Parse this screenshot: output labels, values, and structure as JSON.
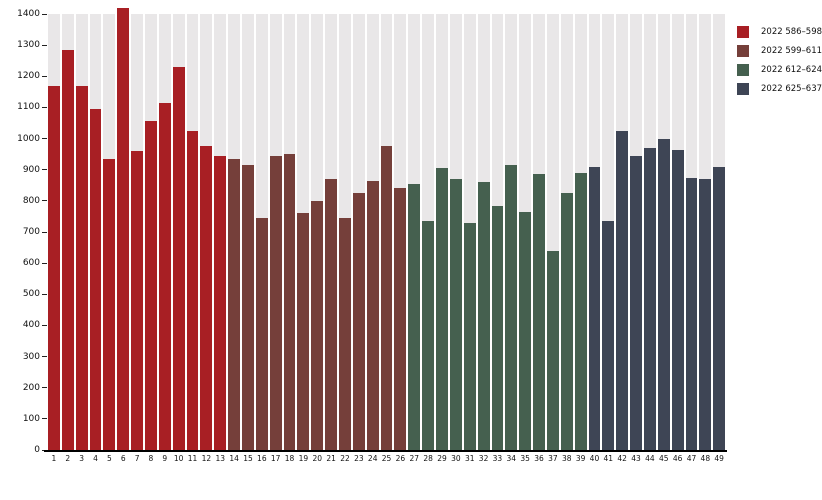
{
  "chart_data": {
    "type": "bar",
    "title": "",
    "xlabel": "",
    "ylabel": "",
    "ylim": [
      0,
      1400
    ],
    "yticks": [
      0,
      100,
      200,
      300,
      400,
      500,
      600,
      700,
      800,
      900,
      1000,
      1100,
      1200,
      1300,
      1400
    ],
    "x_categories": [
      "1",
      "2",
      "3",
      "4",
      "5",
      "6",
      "7",
      "8",
      "9",
      "10",
      "11",
      "12",
      "13",
      "14",
      "15",
      "16",
      "17",
      "18",
      "19",
      "20",
      "21",
      "22",
      "23",
      "24",
      "25",
      "26",
      "27",
      "28",
      "29",
      "30",
      "31",
      "32",
      "33",
      "34",
      "35",
      "36",
      "37",
      "38",
      "39",
      "40",
      "41",
      "42",
      "43",
      "44",
      "45",
      "46",
      "47",
      "48",
      "49"
    ],
    "values": [
      1170,
      1285,
      1170,
      1095,
      935,
      1420,
      960,
      1055,
      1115,
      1230,
      1025,
      975,
      945,
      935,
      915,
      745,
      945,
      950,
      760,
      800,
      870,
      745,
      825,
      865,
      975,
      840,
      855,
      735,
      905,
      870,
      730,
      860,
      785,
      915,
      765,
      885,
      640,
      825,
      890,
      910,
      735,
      1025,
      945,
      970,
      1000,
      965,
      875,
      870,
      910
    ],
    "series": [
      {
        "name": "2022 586–598",
        "color": "#a81f24",
        "x_from": 1,
        "x_to": 13
      },
      {
        "name": "2022 599–611",
        "color": "#753f3a",
        "x_from": 14,
        "x_to": 26
      },
      {
        "name": "2022 612–624",
        "color": "#45604f",
        "x_from": 27,
        "x_to": 39
      },
      {
        "name": "2022 625–637",
        "color": "#3e4555",
        "x_from": 40,
        "x_to": 49
      }
    ],
    "legend_position": "top-right",
    "grid": false,
    "background_stripes": true
  },
  "colors": {
    "stripe": "#e9e7e8",
    "axis": "#000000",
    "tick_label": "#111111",
    "background": "#ffffff"
  }
}
